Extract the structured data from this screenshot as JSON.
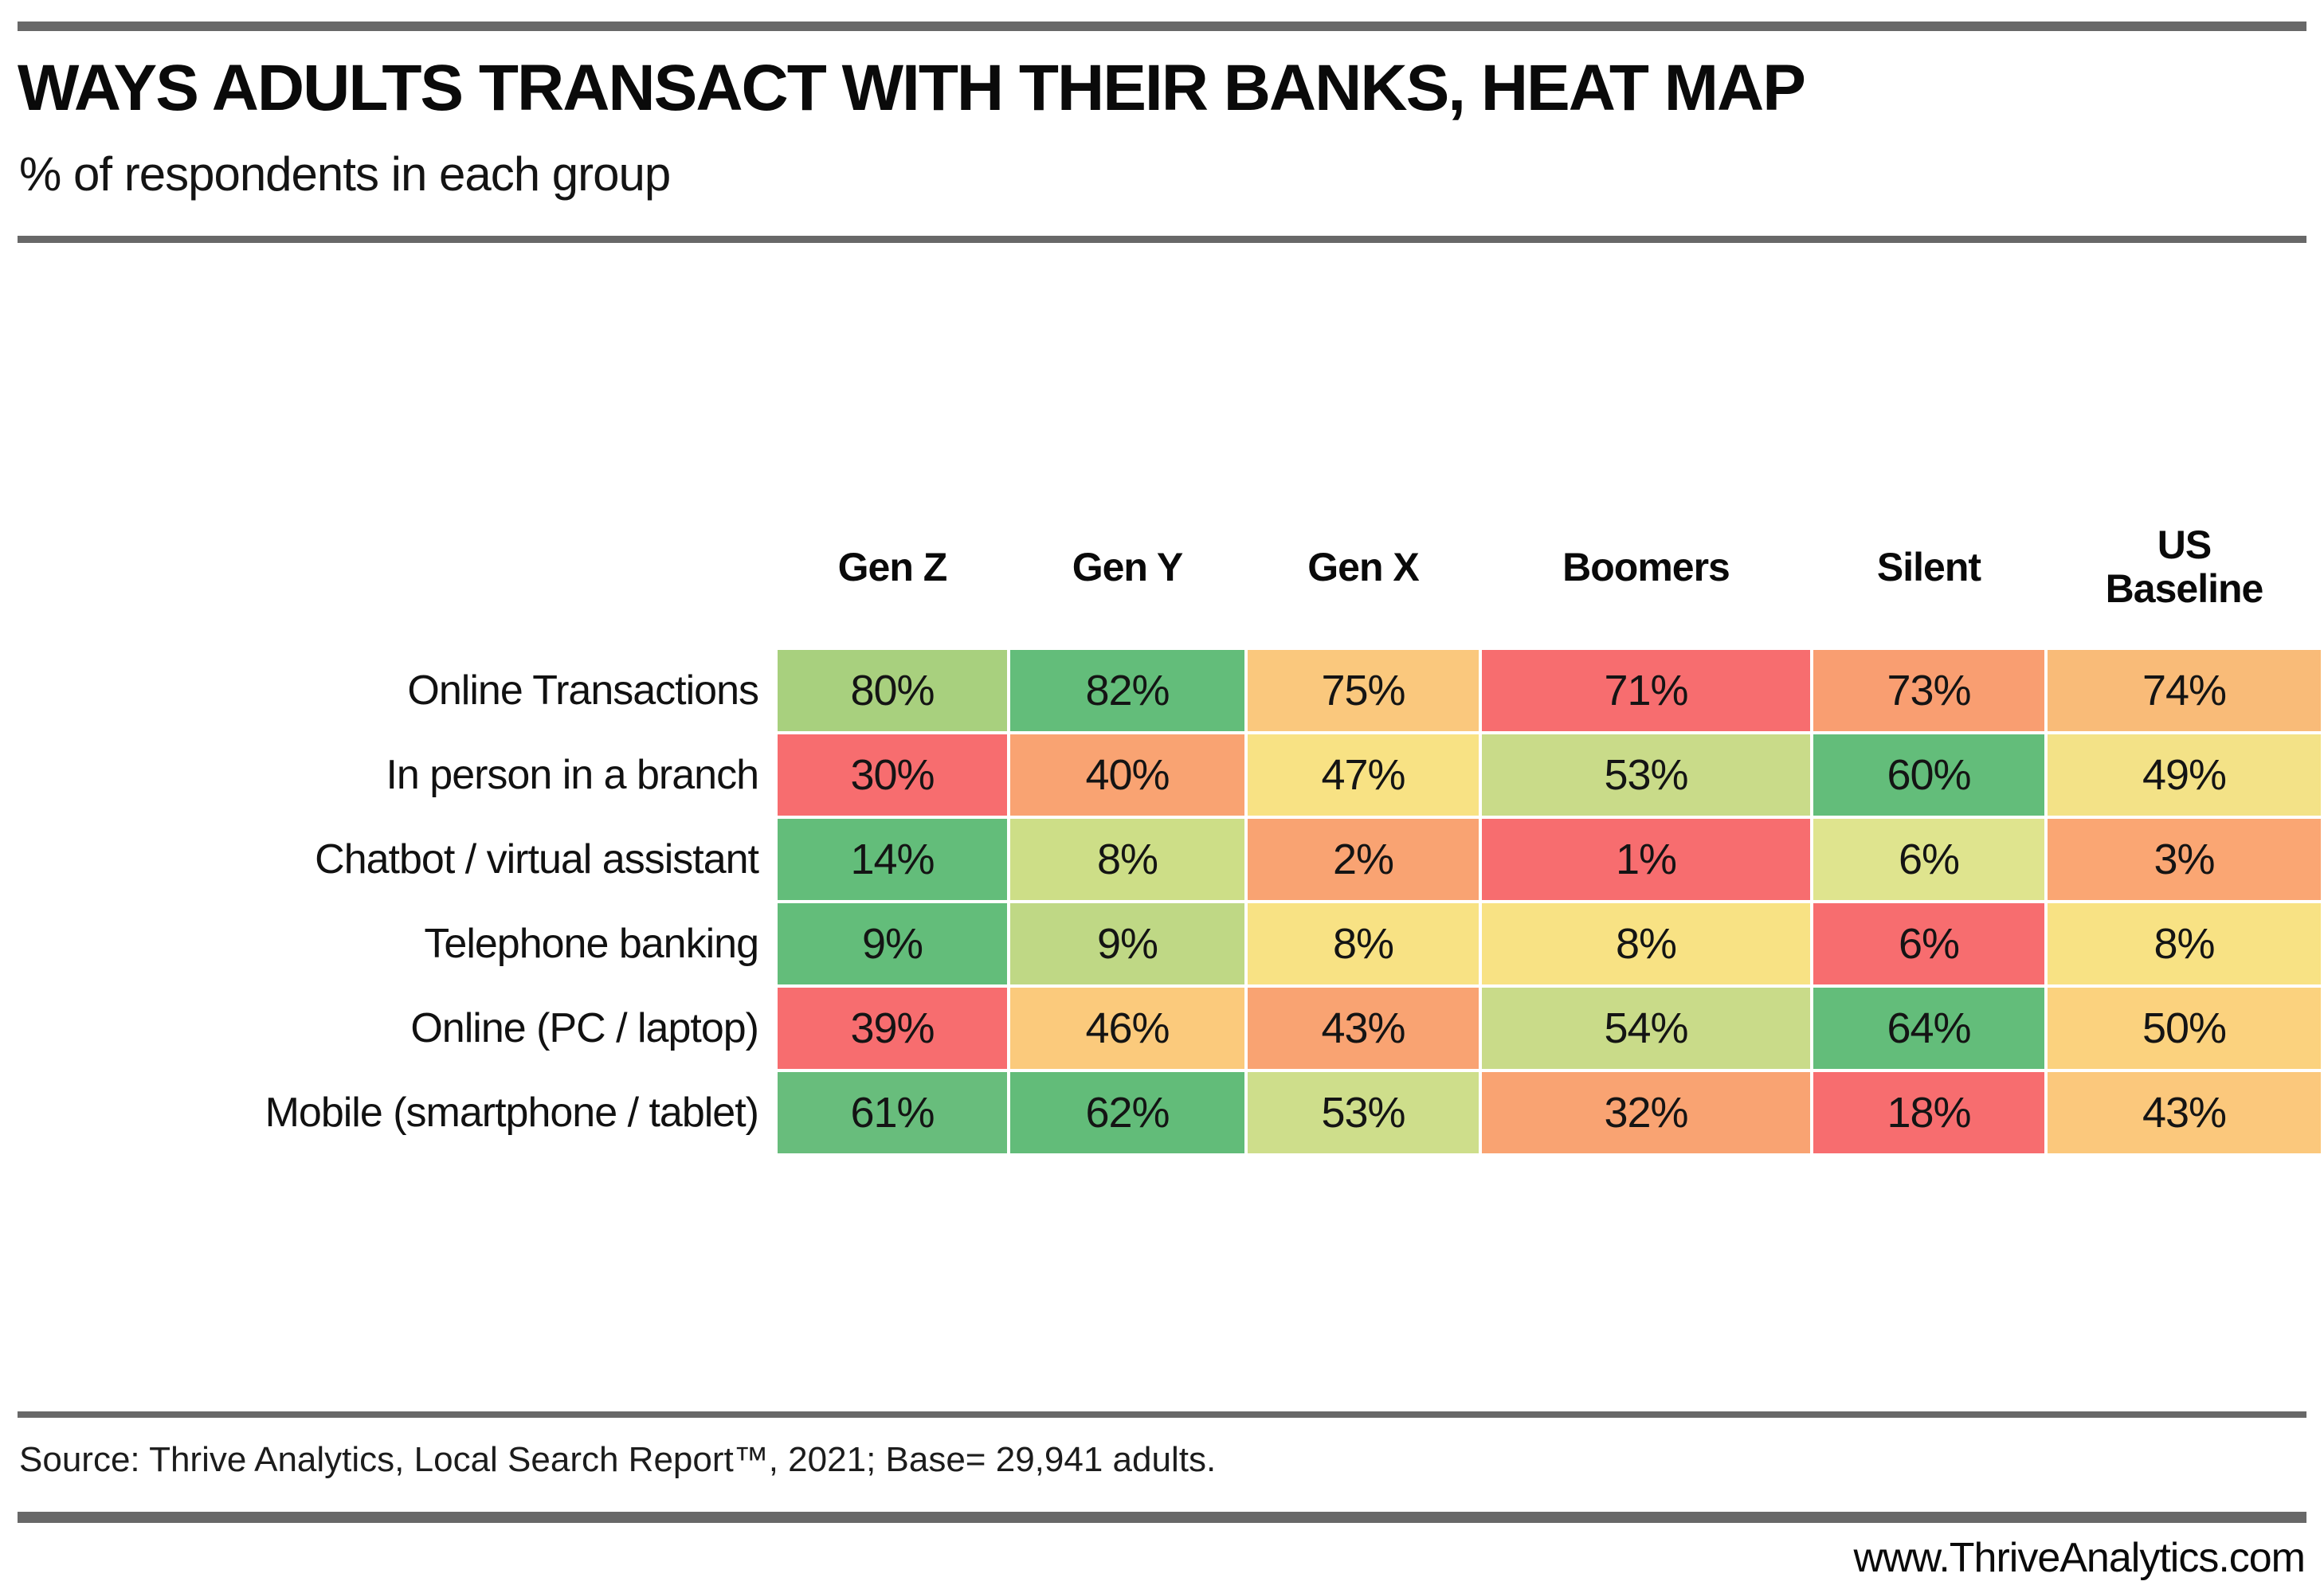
{
  "header": {
    "title": "WAYS ADULTS TRANSACT WITH THEIR BANKS, HEAT MAP",
    "subtitle": "% of respondents in each group"
  },
  "chart_data": {
    "type": "heatmap",
    "title": "WAYS ADULTS TRANSACT WITH THEIR BANKS, HEAT MAP",
    "subtitle": "% of respondents in each group",
    "unit": "%",
    "columns": [
      "Gen Z",
      "Gen Y",
      "Gen X",
      "Boomers",
      "Silent",
      "US Baseline"
    ],
    "rows": [
      "Online Transactions",
      "In person in a branch",
      "Chatbot / virtual assistant",
      "Telephone banking",
      "Online (PC / laptop)",
      "Mobile (smartphone / tablet)"
    ],
    "values": [
      [
        80,
        82,
        75,
        71,
        73,
        74
      ],
      [
        30,
        40,
        47,
        53,
        60,
        49
      ],
      [
        14,
        8,
        2,
        1,
        6,
        3
      ],
      [
        9,
        9,
        8,
        8,
        6,
        8
      ],
      [
        39,
        46,
        43,
        54,
        64,
        50
      ],
      [
        61,
        62,
        53,
        32,
        18,
        43
      ]
    ],
    "color_scale": "red-to-green per row, Excel-style 3-color ramp",
    "palette": {
      "green": "#63bd7a",
      "light_green": "#a8d07e",
      "yellow_green": "#c9db89",
      "yellow": "#f8e284",
      "tan_orange": "#fac87d",
      "salmon": "#f9a372",
      "red": "#f76d6f"
    }
  },
  "table": {
    "columns": [
      "Gen Z",
      "Gen Y",
      "Gen X",
      "Boomers",
      "Silent",
      "US Baseline"
    ],
    "rows": [
      {
        "label": "Online Transactions",
        "cells": [
          {
            "text": "80%",
            "color": "#a8d07e"
          },
          {
            "text": "82%",
            "color": "#63bd7a"
          },
          {
            "text": "75%",
            "color": "#fac87d"
          },
          {
            "text": "71%",
            "color": "#f76d6f"
          },
          {
            "text": "73%",
            "color": "#f99e71"
          },
          {
            "text": "74%",
            "color": "#f9bb78"
          }
        ]
      },
      {
        "label": "In person in a branch",
        "cells": [
          {
            "text": "30%",
            "color": "#f76d6f"
          },
          {
            "text": "40%",
            "color": "#f9a372"
          },
          {
            "text": "47%",
            "color": "#f8e284"
          },
          {
            "text": "53%",
            "color": "#c9db89"
          },
          {
            "text": "60%",
            "color": "#63bd7a"
          },
          {
            "text": "49%",
            "color": "#f3e287"
          }
        ]
      },
      {
        "label": "Chatbot / virtual assistant",
        "cells": [
          {
            "text": "14%",
            "color": "#63bd7a"
          },
          {
            "text": "8%",
            "color": "#cdde87"
          },
          {
            "text": "2%",
            "color": "#f9a372"
          },
          {
            "text": "1%",
            "color": "#f76d6f"
          },
          {
            "text": "6%",
            "color": "#dfe48e"
          },
          {
            "text": "3%",
            "color": "#faa673"
          }
        ]
      },
      {
        "label": "Telephone banking",
        "cells": [
          {
            "text": "9%",
            "color": "#63bd7a"
          },
          {
            "text": "9%",
            "color": "#bfd885"
          },
          {
            "text": "8%",
            "color": "#f8e284"
          },
          {
            "text": "8%",
            "color": "#f8e284"
          },
          {
            "text": "6%",
            "color": "#f76d6f"
          },
          {
            "text": "8%",
            "color": "#f8e284"
          }
        ]
      },
      {
        "label": "Online (PC / laptop)",
        "cells": [
          {
            "text": "39%",
            "color": "#f76d6f"
          },
          {
            "text": "46%",
            "color": "#fbca7c"
          },
          {
            "text": "43%",
            "color": "#f9a372"
          },
          {
            "text": "54%",
            "color": "#c9db89"
          },
          {
            "text": "64%",
            "color": "#63bd7a"
          },
          {
            "text": "50%",
            "color": "#fbd27e"
          }
        ]
      },
      {
        "label": "Mobile (smartphone / tablet)",
        "cells": [
          {
            "text": "61%",
            "color": "#68bd7c"
          },
          {
            "text": "62%",
            "color": "#62bc79"
          },
          {
            "text": "53%",
            "color": "#cede8b"
          },
          {
            "text": "32%",
            "color": "#f9a372"
          },
          {
            "text": "18%",
            "color": "#f76d6f"
          },
          {
            "text": "43%",
            "color": "#fbc87c"
          }
        ]
      }
    ]
  },
  "footer": {
    "source": "Source: Thrive Analytics, Local Search Report™, 2021; Base= 29,941 adults.",
    "website": "www.ThriveAnalytics.com"
  }
}
